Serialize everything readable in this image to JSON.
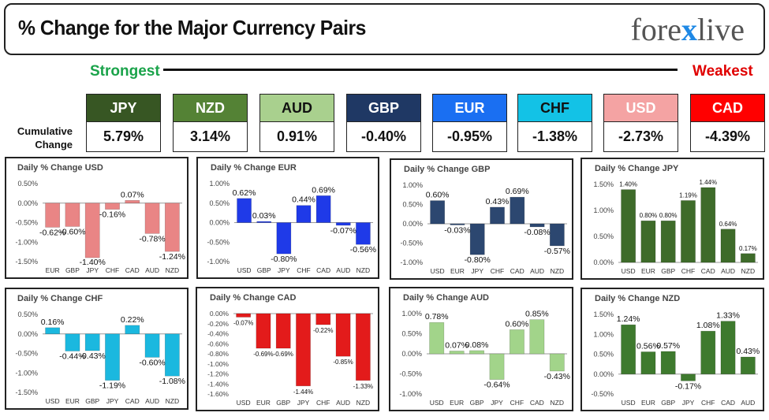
{
  "header": {
    "title": "% Change for the Major Currency Pairs",
    "logo_left": "fore",
    "logo_x": "x",
    "logo_right": "live"
  },
  "strongest_label": "Strongest",
  "weakest_label": "Weakest",
  "cumulative_label_1": "Cumulative",
  "cumulative_label_2": "Change",
  "ranking": [
    {
      "name": "JPY",
      "value": "5.79%",
      "bg": "#375623",
      "fg": "#ffffff"
    },
    {
      "name": "NZD",
      "value": "3.14%",
      "bg": "#548235",
      "fg": "#ffffff"
    },
    {
      "name": "AUD",
      "value": "0.91%",
      "bg": "#a9d08e",
      "fg": "#111111"
    },
    {
      "name": "GBP",
      "value": "-0.40%",
      "bg": "#1f3864",
      "fg": "#ffffff"
    },
    {
      "name": "EUR",
      "value": "-0.95%",
      "bg": "#1a6ff2",
      "fg": "#ffffff"
    },
    {
      "name": "CHF",
      "value": "-1.38%",
      "bg": "#13c2e6",
      "fg": "#111111"
    },
    {
      "name": "USD",
      "value": "-2.73%",
      "bg": "#f4a3a3",
      "fg": "#ffffff"
    },
    {
      "name": "CAD",
      "value": "-4.39%",
      "bg": "#ff0000",
      "fg": "#ffffff"
    }
  ],
  "chart_data": [
    {
      "type": "bar",
      "title": "Daily % Change USD",
      "categories": [
        "EUR",
        "GBP",
        "JPY",
        "CHF",
        "CAD",
        "AUD",
        "NZD"
      ],
      "values": [
        -0.62,
        -0.6,
        -1.4,
        -0.16,
        0.07,
        -0.78,
        -1.24
      ],
      "labels": [
        "-0.62%",
        "-0.60%",
        "-1.40%",
        "-0.16%",
        "0.07%",
        "-0.78%",
        "-1.24%"
      ],
      "ylim": [
        -1.5,
        0.5
      ],
      "ticks": [
        0.5,
        0,
        -0.5,
        -1,
        -1.5
      ],
      "tick_labels": [
        "0.50%",
        "0.00%",
        "-0.50%",
        "-1.00%",
        "-1.50%"
      ],
      "color": "#e98585"
    },
    {
      "type": "bar",
      "title": "Daily % Change EUR",
      "categories": [
        "USD",
        "GBP",
        "JPY",
        "CHF",
        "CAD",
        "AUD",
        "NZD"
      ],
      "values": [
        0.62,
        0.03,
        -0.8,
        0.44,
        0.69,
        -0.07,
        -0.56
      ],
      "labels": [
        "0.62%",
        "0.03%",
        "-0.80%",
        "0.44%",
        "0.69%",
        "-0.07%",
        "-0.56%"
      ],
      "ylim": [
        -1.0,
        1.0
      ],
      "ticks": [
        1,
        0.5,
        0,
        -0.5,
        -1
      ],
      "tick_labels": [
        "1.00%",
        "0.50%",
        "0.00%",
        "-0.50%",
        "-1.00%"
      ],
      "color": "#1f3ae8"
    },
    {
      "type": "bar",
      "title": "Daily % Change GBP",
      "categories": [
        "USD",
        "EUR",
        "JPY",
        "CHF",
        "CAD",
        "AUD",
        "NZD"
      ],
      "values": [
        0.6,
        -0.03,
        -0.8,
        0.43,
        0.69,
        -0.08,
        -0.57
      ],
      "labels": [
        "0.60%",
        "-0.03%",
        "-0.80%",
        "0.43%",
        "0.69%",
        "-0.08%",
        "-0.57%"
      ],
      "ylim": [
        -1.0,
        1.0
      ],
      "ticks": [
        1,
        0.5,
        0,
        -0.5,
        -1
      ],
      "tick_labels": [
        "1.00%",
        "0.50%",
        "0.00%",
        "-0.50%",
        "-1.00%"
      ],
      "color": "#2c4770"
    },
    {
      "type": "bar",
      "title": "Daily % Change JPY",
      "categories": [
        "USD",
        "EUR",
        "GBP",
        "CHF",
        "CAD",
        "AUD",
        "NZD"
      ],
      "values": [
        1.4,
        0.8,
        0.8,
        1.19,
        1.44,
        0.64,
        0.17
      ],
      "labels": [
        "1.40%",
        "0.80%",
        "0.80%",
        "1.19%",
        "1.44%",
        "0.64%",
        "0.17%"
      ],
      "ylim": [
        0,
        1.5
      ],
      "ticks": [
        1.5,
        1,
        0.5,
        0
      ],
      "tick_labels": [
        "1.50%",
        "1.00%",
        "0.50%",
        "0.00%"
      ],
      "color": "#3e6b2a"
    },
    {
      "type": "bar",
      "title": "Daily % Change CHF",
      "categories": [
        "USD",
        "EUR",
        "GBP",
        "JPY",
        "CAD",
        "AUD",
        "NZD"
      ],
      "values": [
        0.16,
        -0.44,
        -0.43,
        -1.19,
        0.22,
        -0.6,
        -1.08
      ],
      "labels": [
        "0.16%",
        "-0.44%",
        "-0.43%",
        "-1.19%",
        "0.22%",
        "-0.60%",
        "-1.08%"
      ],
      "ylim": [
        -1.5,
        0.5
      ],
      "ticks": [
        0.5,
        0,
        -0.5,
        -1,
        -1.5
      ],
      "tick_labels": [
        "0.50%",
        "0.00%",
        "-0.50%",
        "-1.00%",
        "-1.50%"
      ],
      "color": "#1bb8df"
    },
    {
      "type": "bar",
      "title": "Daily % Change CAD",
      "categories": [
        "USD",
        "EUR",
        "GBP",
        "JPY",
        "CHF",
        "AUD",
        "NZD"
      ],
      "values": [
        -0.07,
        -0.69,
        -0.69,
        -1.44,
        -0.22,
        -0.85,
        -1.33
      ],
      "labels": [
        "-0.07%",
        "-0.69%",
        "-0.69%",
        "-1.44%",
        "-0.22%",
        "-0.85%",
        "-1.33%"
      ],
      "ylim": [
        -1.6,
        0
      ],
      "ticks": [
        0,
        -0.2,
        -0.4,
        -0.6,
        -0.8,
        -1,
        -1.2,
        -1.4,
        -1.6
      ],
      "tick_labels": [
        "0.00%",
        "-0.20%",
        "-0.40%",
        "-0.60%",
        "-0.80%",
        "-1.00%",
        "-1.20%",
        "-1.40%",
        "-1.60%"
      ],
      "color": "#e31b1b"
    },
    {
      "type": "bar",
      "title": "Daily % Change AUD",
      "categories": [
        "USD",
        "EUR",
        "GBP",
        "JPY",
        "CHF",
        "CAD",
        "NZD"
      ],
      "values": [
        0.78,
        0.07,
        0.08,
        -0.64,
        0.6,
        0.85,
        -0.43
      ],
      "labels": [
        "0.78%",
        "0.07%",
        "0.08%",
        "-0.64%",
        "0.60%",
        "0.85%",
        "-0.43%"
      ],
      "ylim": [
        -1.0,
        1.0
      ],
      "ticks": [
        1,
        0.5,
        0,
        -0.5,
        -1
      ],
      "tick_labels": [
        "1.00%",
        "0.50%",
        "0.00%",
        "-0.50%",
        "-1.00%"
      ],
      "color": "#a2d48a"
    },
    {
      "type": "bar",
      "title": "Daily % Change NZD",
      "categories": [
        "USD",
        "EUR",
        "GBP",
        "JPY",
        "CHF",
        "CAD",
        "AUD"
      ],
      "values": [
        1.24,
        0.56,
        0.57,
        -0.17,
        1.08,
        1.33,
        0.43
      ],
      "labels": [
        "1.24%",
        "0.56%",
        "0.57%",
        "-0.17%",
        "1.08%",
        "1.33%",
        "0.43%"
      ],
      "ylim": [
        -0.5,
        1.5
      ],
      "ticks": [
        1.5,
        1,
        0.5,
        0,
        -0.5
      ],
      "tick_labels": [
        "1.50%",
        "1.00%",
        "0.50%",
        "0.00%",
        "-0.50%"
      ],
      "color": "#3e7a2e"
    }
  ]
}
